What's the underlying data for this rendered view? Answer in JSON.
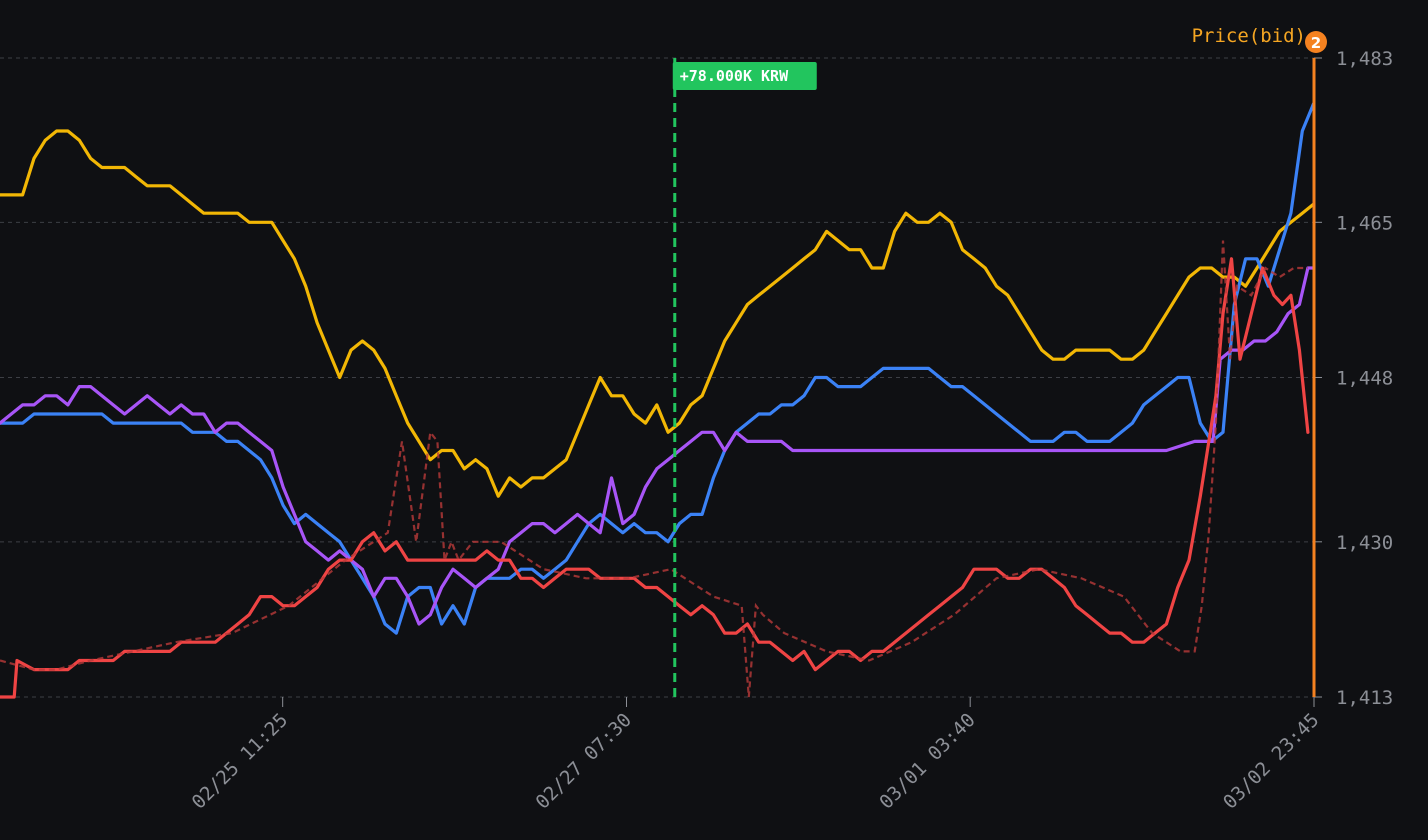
{
  "chart_data": {
    "type": "line",
    "axis_title": "Price(bid)",
    "axis_badge": "2",
    "callout": "+78.000K KRW",
    "ylim": [
      1413,
      1483
    ],
    "y_ticks": [
      {
        "value": 1483,
        "label": "1,483"
      },
      {
        "value": 1465,
        "label": "1,465"
      },
      {
        "value": 1448,
        "label": "1,448"
      },
      {
        "value": 1430,
        "label": "1,430"
      },
      {
        "value": 1413,
        "label": "1,413"
      }
    ],
    "x_ticks": [
      {
        "x": 0.1857,
        "label": "02/25 11:25"
      },
      {
        "x": 0.4286,
        "label": "02/27 07:30"
      },
      {
        "x": 0.6714,
        "label": "03/01 03:40"
      },
      {
        "x": 0.9143,
        "label": "03/02 23:45"
      }
    ],
    "xlim": [
      -0.014,
      0.9143
    ],
    "grid": true,
    "vertical_marker_x": 0.4627,
    "colors": {
      "yellow": "#f2b705",
      "blue": "#3b82f6",
      "purple": "#a855f7",
      "red": "#ef4444",
      "marker": "#22c55e",
      "axis": "#f58220"
    },
    "series": [
      {
        "color": "yellow",
        "x": [
          -0.014,
          0.002,
          0.01,
          0.018,
          0.026,
          0.034,
          0.042,
          0.05,
          0.058,
          0.066,
          0.074,
          0.082,
          0.09,
          0.098,
          0.106,
          0.114,
          0.122,
          0.13,
          0.138,
          0.146,
          0.154,
          0.162,
          0.17,
          0.178,
          0.186,
          0.194,
          0.202,
          0.21,
          0.218,
          0.226,
          0.234,
          0.242,
          0.25,
          0.258,
          0.266,
          0.274,
          0.282,
          0.29,
          0.298,
          0.306,
          0.314,
          0.322,
          0.33,
          0.338,
          0.346,
          0.354,
          0.362,
          0.37,
          0.378,
          0.386,
          0.394,
          0.402,
          0.41,
          0.418,
          0.426,
          0.434,
          0.442,
          0.45,
          0.458,
          0.466,
          0.474,
          0.482,
          0.49,
          0.498,
          0.506,
          0.514,
          0.522,
          0.53,
          0.538,
          0.546,
          0.554,
          0.562,
          0.57,
          0.578,
          0.586,
          0.594,
          0.602,
          0.61,
          0.618,
          0.626,
          0.634,
          0.642,
          0.65,
          0.658,
          0.666,
          0.674,
          0.682,
          0.69,
          0.698,
          0.706,
          0.714,
          0.722,
          0.73,
          0.738,
          0.746,
          0.754,
          0.762,
          0.77,
          0.778,
          0.786,
          0.794,
          0.802,
          0.81,
          0.818,
          0.826,
          0.834,
          0.842,
          0.85,
          0.858,
          0.866,
          0.874,
          0.882,
          0.89,
          0.898,
          0.906,
          0.914
        ],
        "y": [
          1468,
          1468,
          1472,
          1474,
          1475,
          1475,
          1474,
          1472,
          1471,
          1471,
          1471,
          1470,
          1469,
          1469,
          1469,
          1468,
          1467,
          1466,
          1466,
          1466,
          1466,
          1465,
          1465,
          1465,
          1463,
          1461,
          1458,
          1454,
          1451,
          1448,
          1451,
          1452,
          1451,
          1449,
          1446,
          1443,
          1441,
          1439,
          1440,
          1440,
          1438,
          1439,
          1438,
          1435,
          1437,
          1436,
          1437,
          1437,
          1438,
          1439,
          1442,
          1445,
          1448,
          1446,
          1446,
          1444,
          1443,
          1445,
          1442,
          1443,
          1445,
          1446,
          1449,
          1452,
          1454,
          1456,
          1457,
          1458,
          1459,
          1460,
          1461,
          1462,
          1464,
          1463,
          1462,
          1462,
          1460,
          1460,
          1464,
          1466,
          1465,
          1465,
          1466,
          1465,
          1462,
          1461,
          1460,
          1458,
          1457,
          1455,
          1453,
          1451,
          1450,
          1450,
          1451,
          1451,
          1451,
          1451,
          1450,
          1450,
          1451,
          1453,
          1455,
          1457,
          1459,
          1460,
          1460,
          1459,
          1459,
          1458,
          1460,
          1462,
          1464,
          1465,
          1466,
          1467
        ],
        "dashed": false
      },
      {
        "color": "blue",
        "x": [
          -0.014,
          0.002,
          0.01,
          0.018,
          0.026,
          0.034,
          0.042,
          0.05,
          0.058,
          0.066,
          0.074,
          0.082,
          0.09,
          0.098,
          0.106,
          0.114,
          0.122,
          0.13,
          0.138,
          0.146,
          0.154,
          0.162,
          0.17,
          0.178,
          0.186,
          0.194,
          0.202,
          0.21,
          0.218,
          0.226,
          0.234,
          0.242,
          0.25,
          0.258,
          0.266,
          0.274,
          0.282,
          0.29,
          0.298,
          0.306,
          0.314,
          0.322,
          0.33,
          0.338,
          0.346,
          0.354,
          0.362,
          0.37,
          0.378,
          0.386,
          0.394,
          0.402,
          0.41,
          0.418,
          0.426,
          0.434,
          0.442,
          0.45,
          0.458,
          0.466,
          0.474,
          0.482,
          0.49,
          0.498,
          0.506,
          0.514,
          0.522,
          0.53,
          0.538,
          0.546,
          0.554,
          0.562,
          0.57,
          0.578,
          0.586,
          0.594,
          0.602,
          0.61,
          0.618,
          0.626,
          0.634,
          0.642,
          0.65,
          0.658,
          0.666,
          0.674,
          0.682,
          0.69,
          0.698,
          0.706,
          0.714,
          0.722,
          0.73,
          0.738,
          0.746,
          0.754,
          0.762,
          0.77,
          0.778,
          0.786,
          0.794,
          0.802,
          0.81,
          0.818,
          0.826,
          0.834,
          0.842,
          0.85,
          0.858,
          0.866,
          0.874,
          0.882,
          0.89,
          0.898,
          0.906,
          0.914
        ],
        "y": [
          1443,
          1443,
          1444,
          1444,
          1444,
          1444,
          1444,
          1444,
          1444,
          1443,
          1443,
          1443,
          1443,
          1443,
          1443,
          1443,
          1442,
          1442,
          1442,
          1441,
          1441,
          1440,
          1439,
          1437,
          1434,
          1432,
          1433,
          1432,
          1431,
          1430,
          1428,
          1426,
          1424,
          1421,
          1420,
          1424,
          1425,
          1425,
          1421,
          1423,
          1421,
          1425,
          1426,
          1426,
          1426,
          1427,
          1427,
          1426,
          1427,
          1428,
          1430,
          1432,
          1433,
          1432,
          1431,
          1432,
          1431,
          1431,
          1430,
          1432,
          1433,
          1433,
          1437,
          1440,
          1442,
          1443,
          1444,
          1444,
          1445,
          1445,
          1446,
          1448,
          1448,
          1447,
          1447,
          1447,
          1448,
          1449,
          1449,
          1449,
          1449,
          1449,
          1448,
          1447,
          1447,
          1446,
          1445,
          1444,
          1443,
          1442,
          1441,
          1441,
          1441,
          1442,
          1442,
          1441,
          1441,
          1441,
          1442,
          1443,
          1445,
          1446,
          1447,
          1448,
          1448,
          1443,
          1441,
          1442,
          1456,
          1461,
          1461,
          1458,
          1462,
          1466,
          1475,
          1478
        ],
        "dashed": false
      },
      {
        "color": "purple",
        "x": [
          -0.014,
          0.002,
          0.01,
          0.018,
          0.026,
          0.034,
          0.042,
          0.05,
          0.058,
          0.066,
          0.074,
          0.082,
          0.09,
          0.098,
          0.106,
          0.114,
          0.122,
          0.13,
          0.138,
          0.146,
          0.154,
          0.162,
          0.17,
          0.178,
          0.186,
          0.194,
          0.202,
          0.21,
          0.218,
          0.226,
          0.234,
          0.242,
          0.25,
          0.258,
          0.266,
          0.274,
          0.282,
          0.29,
          0.298,
          0.306,
          0.314,
          0.322,
          0.33,
          0.338,
          0.346,
          0.354,
          0.362,
          0.37,
          0.378,
          0.386,
          0.394,
          0.402,
          0.41,
          0.418,
          0.426,
          0.434,
          0.442,
          0.45,
          0.458,
          0.466,
          0.474,
          0.482,
          0.49,
          0.498,
          0.506,
          0.514,
          0.522,
          0.53,
          0.538,
          0.546,
          0.554,
          0.562,
          0.574,
          0.59,
          0.61,
          0.63,
          0.65,
          0.67,
          0.69,
          0.71,
          0.73,
          0.75,
          0.77,
          0.79,
          0.81,
          0.83,
          0.84,
          0.843,
          0.848,
          0.856,
          0.864,
          0.872,
          0.88,
          0.888,
          0.896,
          0.904,
          0.91,
          0.914
        ],
        "y": [
          1443,
          1445,
          1445,
          1446,
          1446,
          1445,
          1447,
          1447,
          1446,
          1445,
          1444,
          1445,
          1446,
          1445,
          1444,
          1445,
          1444,
          1444,
          1442,
          1443,
          1443,
          1442,
          1441,
          1440,
          1436,
          1433,
          1430,
          1429,
          1428,
          1429,
          1428,
          1427,
          1424,
          1426,
          1426,
          1424,
          1421,
          1422,
          1425,
          1427,
          1426,
          1425,
          1426,
          1427,
          1430,
          1431,
          1432,
          1432,
          1431,
          1432,
          1433,
          1432,
          1431,
          1437,
          1432,
          1433,
          1436,
          1438,
          1439,
          1440,
          1441,
          1442,
          1442,
          1440,
          1442,
          1441,
          1441,
          1441,
          1441,
          1440,
          1440,
          1440,
          1440,
          1440,
          1440,
          1440,
          1440,
          1440,
          1440,
          1440,
          1440,
          1440,
          1440,
          1440,
          1440,
          1441,
          1441,
          1441,
          1450,
          1451,
          1451,
          1452,
          1452,
          1453,
          1455,
          1456,
          1460,
          1460
        ],
        "dashed": false
      },
      {
        "color": "red",
        "x": [
          -0.014,
          -0.004,
          -0.002,
          0.01,
          0.018,
          0.026,
          0.034,
          0.042,
          0.05,
          0.058,
          0.066,
          0.074,
          0.082,
          0.09,
          0.098,
          0.106,
          0.114,
          0.122,
          0.13,
          0.138,
          0.146,
          0.154,
          0.162,
          0.17,
          0.178,
          0.186,
          0.194,
          0.202,
          0.21,
          0.218,
          0.226,
          0.234,
          0.242,
          0.25,
          0.258,
          0.266,
          0.274,
          0.282,
          0.29,
          0.298,
          0.306,
          0.314,
          0.322,
          0.33,
          0.338,
          0.346,
          0.354,
          0.362,
          0.37,
          0.378,
          0.386,
          0.394,
          0.402,
          0.41,
          0.418,
          0.426,
          0.434,
          0.442,
          0.45,
          0.458,
          0.466,
          0.474,
          0.482,
          0.49,
          0.498,
          0.506,
          0.514,
          0.522,
          0.53,
          0.538,
          0.546,
          0.554,
          0.562,
          0.57,
          0.578,
          0.586,
          0.594,
          0.602,
          0.61,
          0.618,
          0.626,
          0.634,
          0.642,
          0.65,
          0.658,
          0.666,
          0.674,
          0.682,
          0.69,
          0.698,
          0.706,
          0.714,
          0.722,
          0.73,
          0.738,
          0.746,
          0.754,
          0.762,
          0.77,
          0.778,
          0.786,
          0.794,
          0.802,
          0.81,
          0.818,
          0.826,
          0.834,
          0.842,
          0.845,
          0.85,
          0.856,
          0.862,
          0.87,
          0.878,
          0.886,
          0.892,
          0.898,
          0.904,
          0.91
        ],
        "y": [
          1413,
          1413,
          1417,
          1416,
          1416,
          1416,
          1416,
          1417,
          1417,
          1417,
          1417,
          1418,
          1418,
          1418,
          1418,
          1418,
          1419,
          1419,
          1419,
          1419,
          1420,
          1421,
          1422,
          1424,
          1424,
          1423,
          1423,
          1424,
          1425,
          1427,
          1428,
          1428,
          1430,
          1431,
          1429,
          1430,
          1428,
          1428,
          1428,
          1428,
          1428,
          1428,
          1428,
          1429,
          1428,
          1428,
          1426,
          1426,
          1425,
          1426,
          1427,
          1427,
          1427,
          1426,
          1426,
          1426,
          1426,
          1425,
          1425,
          1424,
          1423,
          1422,
          1423,
          1422,
          1420,
          1420,
          1421,
          1419,
          1419,
          1418,
          1417,
          1418,
          1416,
          1417,
          1418,
          1418,
          1417,
          1418,
          1418,
          1419,
          1420,
          1421,
          1422,
          1423,
          1424,
          1425,
          1427,
          1427,
          1427,
          1426,
          1426,
          1427,
          1427,
          1426,
          1425,
          1423,
          1422,
          1421,
          1420,
          1420,
          1419,
          1419,
          1420,
          1421,
          1425,
          1428,
          1435,
          1443,
          1446,
          1455,
          1461,
          1450,
          1455,
          1460,
          1457,
          1456,
          1457,
          1451,
          1442
        ],
        "dashed": false
      },
      {
        "color": "red",
        "x": [
          -0.014,
          0.01,
          0.026,
          0.05,
          0.08,
          0.11,
          0.15,
          0.19,
          0.23,
          0.26,
          0.27,
          0.28,
          0.29,
          0.295,
          0.3,
          0.305,
          0.31,
          0.32,
          0.34,
          0.37,
          0.4,
          0.43,
          0.46,
          0.49,
          0.51,
          0.515,
          0.52,
          0.525,
          0.54,
          0.57,
          0.6,
          0.63,
          0.66,
          0.69,
          0.72,
          0.75,
          0.78,
          0.8,
          0.82,
          0.83,
          0.835,
          0.84,
          0.845,
          0.85,
          0.855,
          0.86,
          0.87,
          0.88,
          0.89,
          0.9,
          0.91
        ],
        "y": [
          1417,
          1416,
          1416,
          1417,
          1418,
          1419,
          1420,
          1423,
          1428,
          1431,
          1441,
          1430,
          1442,
          1441,
          1428,
          1430,
          1428,
          1430,
          1430,
          1427,
          1426,
          1426,
          1427,
          1424,
          1423,
          1413,
          1423,
          1422,
          1420,
          1418,
          1417,
          1419,
          1422,
          1426,
          1427,
          1426,
          1424,
          1420,
          1418,
          1418,
          1423,
          1431,
          1443,
          1463,
          1450,
          1458,
          1457,
          1460,
          1459,
          1460,
          1460
        ],
        "dashed": true
      }
    ]
  }
}
